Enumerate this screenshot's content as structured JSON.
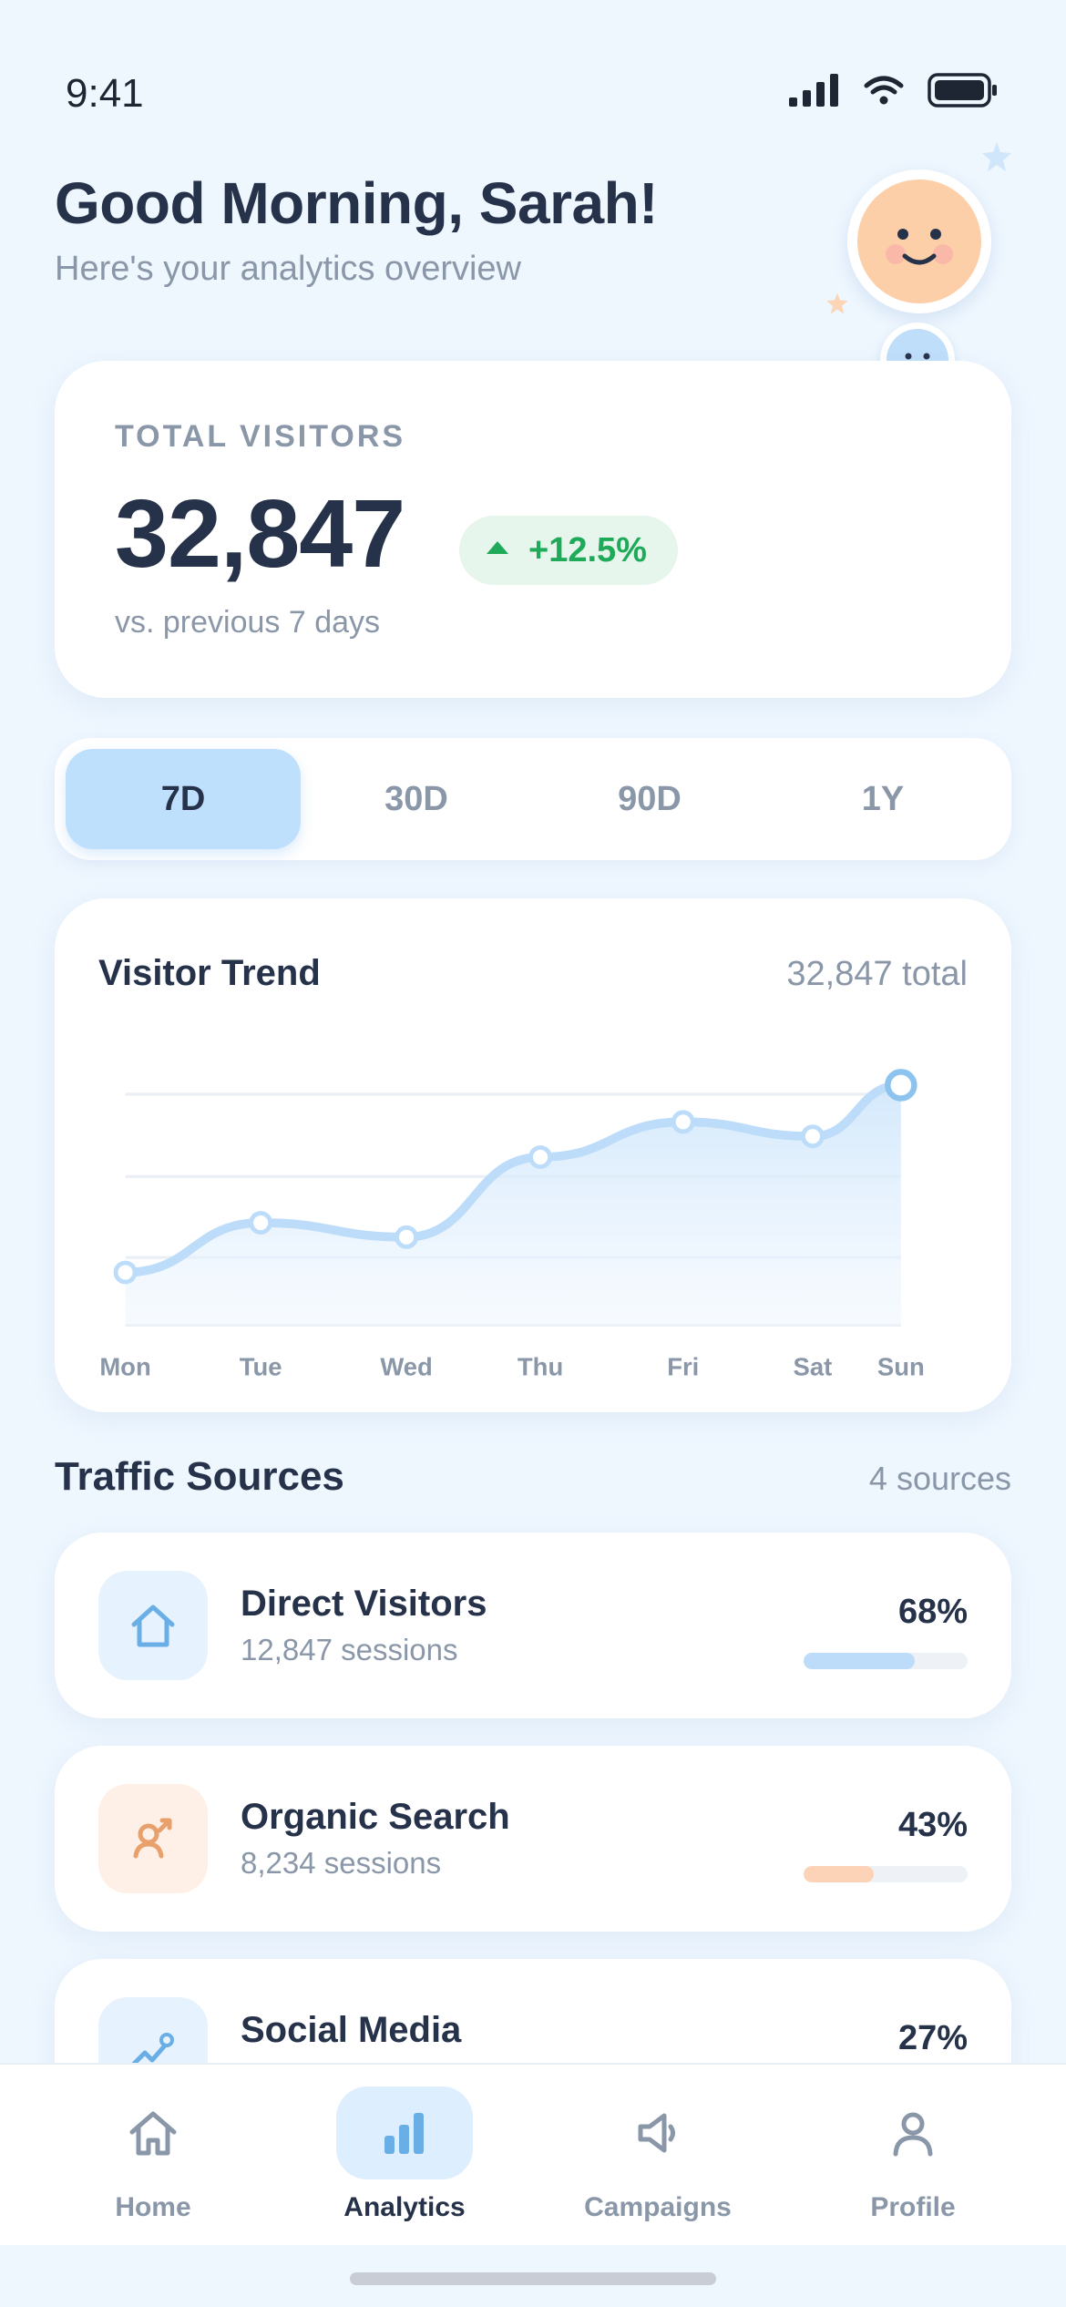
{
  "status_bar": {
    "time": "9:41"
  },
  "header": {
    "greeting": "Good Morning, Sarah!",
    "subtitle": "Here's your analytics overview"
  },
  "visitors": {
    "label": "TOTAL VISITORS",
    "value": "32,847",
    "change": "+12.5%",
    "comparison": "vs. previous 7 days"
  },
  "period_tabs": [
    {
      "label": "7D",
      "active": true
    },
    {
      "label": "30D",
      "active": false
    },
    {
      "label": "90D",
      "active": false
    },
    {
      "label": "1Y",
      "active": false
    }
  ],
  "trend": {
    "title": "Visitor Trend",
    "total": "32,847 total"
  },
  "chart_data": {
    "type": "area",
    "categories": [
      "Mon",
      "Tue",
      "Wed",
      "Thu",
      "Fri",
      "Sat",
      "Sun"
    ],
    "values": [
      3.3,
      6.4,
      5.5,
      10.5,
      12.7,
      11.8,
      15.0
    ],
    "ylim": [
      0,
      16
    ],
    "grid": true,
    "title": "Visitor Trend"
  },
  "traffic": {
    "title": "Traffic Sources",
    "count": "4 sources",
    "sources": [
      {
        "name": "Direct Visitors",
        "sessions": "12,847 sessions",
        "percent": "68%",
        "fill": 0.68,
        "icon": "house-icon",
        "color": "#bcdcfa",
        "icon_bg": "#e6f2fe",
        "icon_color": "#6aaee6"
      },
      {
        "name": "Organic Search",
        "sessions": "8,234 sessions",
        "percent": "43%",
        "fill": 0.43,
        "icon": "person-search-icon",
        "color": "#fdd3b8",
        "icon_bg": "#fef0e6",
        "icon_color": "#e8a06c"
      },
      {
        "name": "Social Media",
        "sessions": "",
        "percent": "27%",
        "fill": 0.27,
        "icon": "trend-link-icon",
        "color": "#bcdcfa",
        "icon_bg": "#e6f2fe",
        "icon_color": "#6aaee6"
      }
    ]
  },
  "nav": [
    {
      "label": "Home",
      "icon": "home-icon",
      "active": false
    },
    {
      "label": "Analytics",
      "icon": "bar-chart-icon",
      "active": true
    },
    {
      "label": "Campaigns",
      "icon": "megaphone-icon",
      "active": false
    },
    {
      "label": "Profile",
      "icon": "person-icon",
      "active": false
    }
  ],
  "colors": {
    "background": "#eef6fe",
    "accent": "#bee0fd",
    "positive": "#1faa59",
    "text_primary": "#26324a",
    "text_muted": "#8a97a8"
  }
}
